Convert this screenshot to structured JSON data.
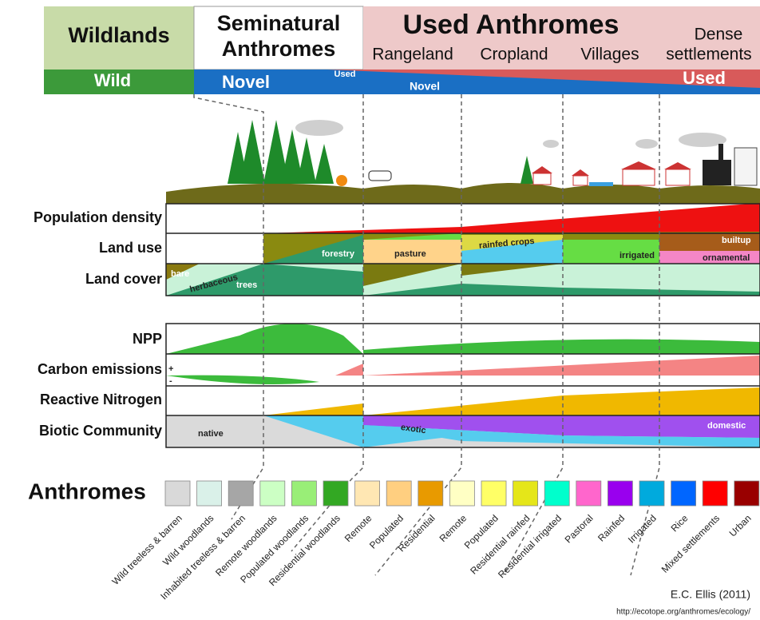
{
  "header": {
    "wildlands": "Wildlands",
    "seminatural": [
      "Seminatural",
      "Anthromes"
    ],
    "used": "Used Anthromes",
    "subheads": [
      "Rangeland",
      "Cropland",
      "Villages",
      [
        "Dense",
        "settlements"
      ]
    ],
    "bar": {
      "wild": "Wild",
      "novel": "Novel",
      "used_small": "Used",
      "novel_small": "Novel",
      "used": "Used"
    }
  },
  "rows": {
    "population_density": "Population density",
    "land_use": "Land use",
    "land_cover": "Land cover",
    "npp": "NPP",
    "carbon_emissions": "Carbon emissions",
    "reactive_nitrogen": "Reactive Nitrogen",
    "biotic_community": "Biotic Community"
  },
  "annotations": {
    "bare": "bare",
    "herbaceous": "herbaceous",
    "trees": "trees",
    "forestry": "forestry",
    "pasture": "pasture",
    "rainfed_crops": "rainfed crops",
    "irrigated": "irrigated",
    "builtup": "builtup",
    "ornamental": "ornamental",
    "plus": "+",
    "minus": "-",
    "native": "native",
    "exotic": "exotic",
    "domestic": "domestic"
  },
  "legend": {
    "title": "Anthromes",
    "items": [
      {
        "label": "Wild treeless & barren",
        "color": "#d9d9d9"
      },
      {
        "label": "Wild woodlands",
        "color": "#daf1e9"
      },
      {
        "label": "Inhabited treeless & barren",
        "color": "#a6a6a6"
      },
      {
        "label": "Remote woodlands",
        "color": "#ccffc4"
      },
      {
        "label": "Populated woodlands",
        "color": "#99ee77"
      },
      {
        "label": "Residential woodlands",
        "color": "#33a823"
      },
      {
        "label": "Remote",
        "color": "#ffe7b3"
      },
      {
        "label": "Populated",
        "color": "#ffcf80"
      },
      {
        "label": "Residential",
        "color": "#e89a00"
      },
      {
        "label": "Remote",
        "color": "#ffffc4"
      },
      {
        "label": "Populated",
        "color": "#ffff66"
      },
      {
        "label": "Residential rainfed",
        "color": "#e5e619"
      },
      {
        "label": "Residential irrigated",
        "color": "#00ffcc"
      },
      {
        "label": "Pastoral",
        "color": "#ff66cc"
      },
      {
        "label": "Rainfed",
        "color": "#9900ee"
      },
      {
        "label": "Irrigated",
        "color": "#00aadd"
      },
      {
        "label": "Rice",
        "color": "#0066ff"
      },
      {
        "label": "Mixed settlements",
        "color": "#ff0000"
      },
      {
        "label": "Urban",
        "color": "#990000"
      }
    ]
  },
  "footer": {
    "credit": "E.C. Ellis (2011)",
    "url": "http://ecotope.org/anthromes/ecology/"
  }
}
